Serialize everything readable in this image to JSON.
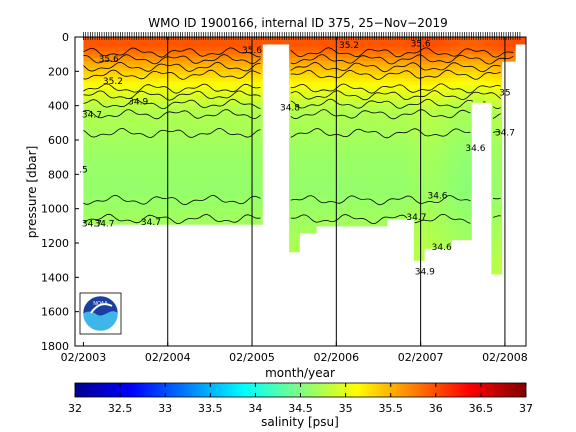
{
  "chart_data": {
    "type": "heatmap",
    "title": "WMO ID 1900166, internal ID 375, 25−Nov−2019",
    "xlabel": "month/year",
    "ylabel": "pressure [dbar]",
    "x_ticks": [
      "02/2003",
      "02/2004",
      "02/2005",
      "02/2006",
      "02/2007",
      "02/2008"
    ],
    "y_ticks": [
      0,
      200,
      400,
      600,
      800,
      1000,
      1200,
      1400,
      1600,
      1800
    ],
    "ylim": [
      1800,
      0
    ],
    "y_reversed": true,
    "colorbar": {
      "label": "salinity [psu]",
      "range": [
        32,
        37
      ],
      "ticks": [
        "32",
        "32.5",
        "33",
        "33.5",
        "34",
        "34.5",
        "35",
        "35.5",
        "36",
        "36.5",
        "37"
      ],
      "colormap": "jet"
    },
    "contour_labels": [
      {
        "text": "35.6",
        "x": 2003.3,
        "y": 130
      },
      {
        "text": "35.2",
        "x": 2003.35,
        "y": 260
      },
      {
        "text": "34.9",
        "x": 2003.65,
        "y": 380
      },
      {
        "text": "34.7",
        "x": 2003.1,
        "y": 455
      },
      {
        "text": ".5",
        "x": 2003.0,
        "y": 775
      },
      {
        "text": "34.7",
        "x": 2003.1,
        "y": 1090
      },
      {
        "text": "34.7",
        "x": 2003.25,
        "y": 1090
      },
      {
        "text": "34.7",
        "x": 2003.8,
        "y": 1080
      },
      {
        "text": "35.6",
        "x": 2005.0,
        "y": 80
      },
      {
        "text": "34.8",
        "x": 2005.45,
        "y": 415
      },
      {
        "text": "35.2",
        "x": 2006.15,
        "y": 50
      },
      {
        "text": "35.6",
        "x": 2007.0,
        "y": 40
      },
      {
        "text": "35",
        "x": 2008.0,
        "y": 325
      },
      {
        "text": "34.7",
        "x": 2008.0,
        "y": 560
      },
      {
        "text": "34.6",
        "x": 2007.65,
        "y": 650
      },
      {
        "text": "34.6",
        "x": 2007.2,
        "y": 925
      },
      {
        "text": "34.7",
        "x": 2006.95,
        "y": 1050
      },
      {
        "text": "34.6",
        "x": 2007.25,
        "y": 1225
      },
      {
        "text": "34.9",
        "x": 2007.05,
        "y": 1370
      }
    ],
    "float_profiles": {
      "start": 2003.0,
      "end": 2008.2,
      "interval_days": 10
    },
    "data_gaps": [
      {
        "x": [
          2005.1,
          2005.45
        ],
        "y": [
          40,
          1800
        ]
      },
      {
        "x": [
          2007.6,
          2007.85
        ],
        "y": [
          380,
          1800
        ]
      }
    ],
    "logo": "NOAA"
  }
}
